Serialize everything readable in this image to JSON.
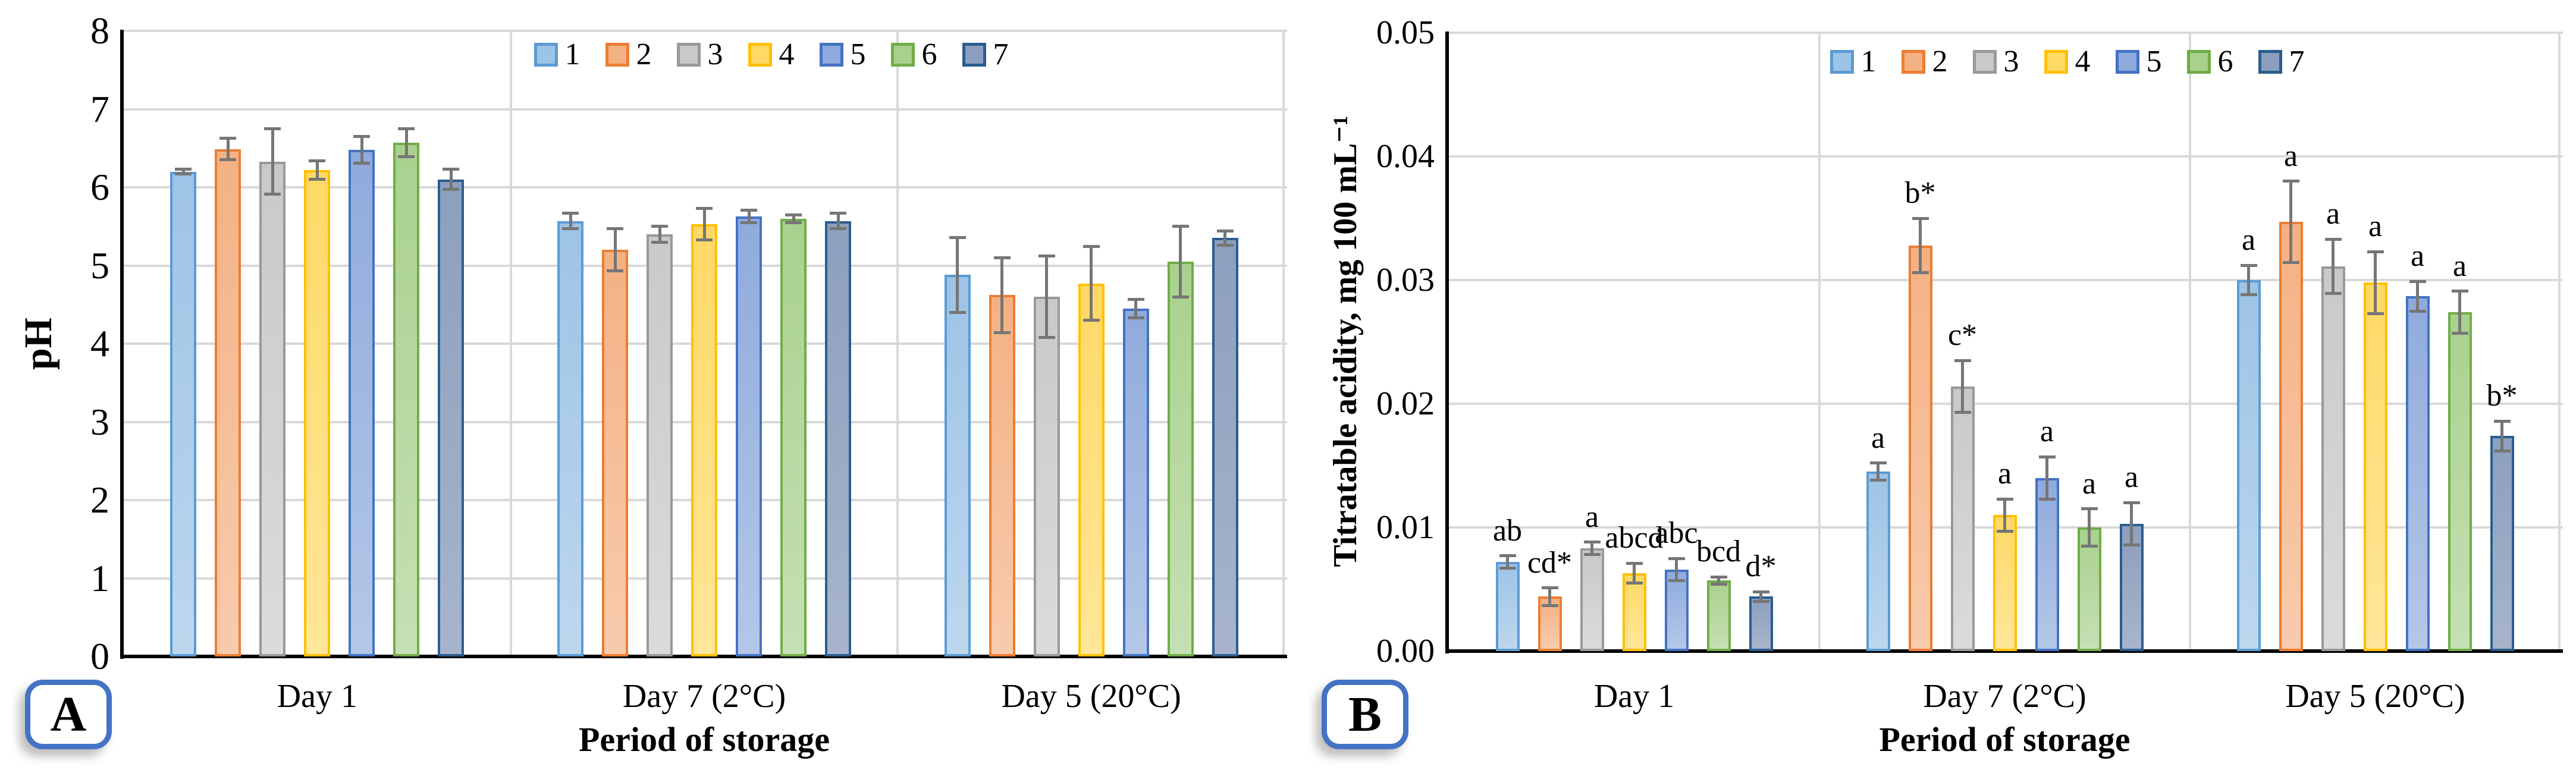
{
  "styles": {
    "background": "#ffffff",
    "grid_color": "#d9d9d9",
    "error_color": "#767676",
    "axis_color": "#000000",
    "badge_border_color": "#4472c4",
    "text_color": "#000000"
  },
  "chart_data": [
    {
      "type": "bar",
      "panel_label": "A",
      "ylabel": "pH",
      "xlabel": "Period of storage",
      "categories": [
        "Day 1",
        "Day 7 (2°C)",
        "Day 5 (20°C)"
      ],
      "ylim": [
        0,
        8
      ],
      "yticks": [
        "0",
        "1",
        "2",
        "3",
        "4",
        "5",
        "6",
        "7",
        "8"
      ],
      "grid": true,
      "legend_position": "top-center",
      "legend": [
        "1",
        "2",
        "3",
        "4",
        "5",
        "6",
        "7"
      ],
      "colors": [
        {
          "fill": "#9dc3e6",
          "fill2": "#bdd7ee",
          "border": "#5b9bd5"
        },
        {
          "fill": "#f4b183",
          "fill2": "#f8cbad",
          "border": "#ed7d31"
        },
        {
          "fill": "#c9c9c9",
          "fill2": "#dbdbdb",
          "border": "#999999"
        },
        {
          "fill": "#ffd966",
          "fill2": "#ffe699",
          "border": "#ffc000"
        },
        {
          "fill": "#8faadc",
          "fill2": "#b4c7e7",
          "border": "#4472c4"
        },
        {
          "fill": "#a9d18e",
          "fill2": "#c5e0b4",
          "border": "#70ad47"
        },
        {
          "fill": "#8c9fbe",
          "fill2": "#a7b4cb",
          "border": "#2a5d8e"
        }
      ],
      "series": [
        {
          "name": "1",
          "values": [
            6.2,
            5.57,
            4.88
          ],
          "errors": [
            0.03,
            0.1,
            0.48
          ]
        },
        {
          "name": "2",
          "values": [
            6.49,
            5.2,
            4.62
          ],
          "errors": [
            0.14,
            0.27,
            0.48
          ]
        },
        {
          "name": "3",
          "values": [
            6.33,
            5.4,
            4.6
          ],
          "errors": [
            0.42,
            0.1,
            0.52
          ]
        },
        {
          "name": "4",
          "values": [
            6.22,
            5.53,
            4.77
          ],
          "errors": [
            0.12,
            0.2,
            0.47
          ]
        },
        {
          "name": "5",
          "values": [
            6.48,
            5.63,
            4.45
          ],
          "errors": [
            0.17,
            0.08,
            0.12
          ]
        },
        {
          "name": "6",
          "values": [
            6.57,
            5.6,
            5.05
          ],
          "errors": [
            0.18,
            0.05,
            0.45
          ]
        },
        {
          "name": "7",
          "values": [
            6.1,
            5.57,
            5.35
          ],
          "errors": [
            0.13,
            0.1,
            0.09
          ]
        }
      ]
    },
    {
      "type": "bar",
      "panel_label": "B",
      "ylabel": "Titratable acidity, mg 100 mL⁻¹",
      "xlabel": "Period of storage",
      "categories": [
        "Day 1",
        "Day 7 (2°C)",
        "Day 5 (20°C)"
      ],
      "ylim": [
        0,
        0.05
      ],
      "yticks": [
        "0.00",
        "0.01",
        "0.02",
        "0.03",
        "0.04",
        "0.05"
      ],
      "grid": true,
      "legend_position": "top-center",
      "legend": [
        "1",
        "2",
        "3",
        "4",
        "5",
        "6",
        "7"
      ],
      "colors": [
        {
          "fill": "#9dc3e6",
          "fill2": "#bdd7ee",
          "border": "#5b9bd5"
        },
        {
          "fill": "#f4b183",
          "fill2": "#f8cbad",
          "border": "#ed7d31"
        },
        {
          "fill": "#c9c9c9",
          "fill2": "#dbdbdb",
          "border": "#999999"
        },
        {
          "fill": "#ffd966",
          "fill2": "#ffe699",
          "border": "#ffc000"
        },
        {
          "fill": "#8faadc",
          "fill2": "#b4c7e7",
          "border": "#4472c4"
        },
        {
          "fill": "#a9d18e",
          "fill2": "#c5e0b4",
          "border": "#70ad47"
        },
        {
          "fill": "#8c9fbe",
          "fill2": "#a7b4cb",
          "border": "#2a5d8e"
        }
      ],
      "series": [
        {
          "name": "1",
          "values": [
            0.0072,
            0.0145,
            0.03
          ],
          "errors": [
            0.0005,
            0.0007,
            0.0012
          ],
          "labels": [
            "ab",
            "a",
            "a"
          ]
        },
        {
          "name": "2",
          "values": [
            0.0044,
            0.0328,
            0.0347
          ],
          "errors": [
            0.0007,
            0.0022,
            0.0033
          ],
          "labels": [
            "cd*",
            "b*",
            "a"
          ]
        },
        {
          "name": "3",
          "values": [
            0.0083,
            0.0214,
            0.0311
          ],
          "errors": [
            0.0005,
            0.0021,
            0.0022
          ],
          "labels": [
            "a",
            "c*",
            "a"
          ]
        },
        {
          "name": "4",
          "values": [
            0.0063,
            0.011,
            0.0298
          ],
          "errors": [
            0.0008,
            0.0013,
            0.0025
          ],
          "labels": [
            "abcd",
            "a",
            "a"
          ]
        },
        {
          "name": "5",
          "values": [
            0.0066,
            0.014,
            0.0287
          ],
          "errors": [
            0.0009,
            0.0017,
            0.0012
          ],
          "labels": [
            "abc",
            "a",
            "a"
          ]
        },
        {
          "name": "6",
          "values": [
            0.0057,
            0.01,
            0.0274
          ],
          "errors": [
            0.0003,
            0.0015,
            0.0017
          ],
          "labels": [
            "bcd",
            "a",
            "a"
          ]
        },
        {
          "name": "7",
          "values": [
            0.0044,
            0.0103,
            0.0174
          ],
          "errors": [
            0.0004,
            0.0017,
            0.0012
          ],
          "labels": [
            "d*",
            "a",
            "b*"
          ]
        }
      ]
    }
  ]
}
